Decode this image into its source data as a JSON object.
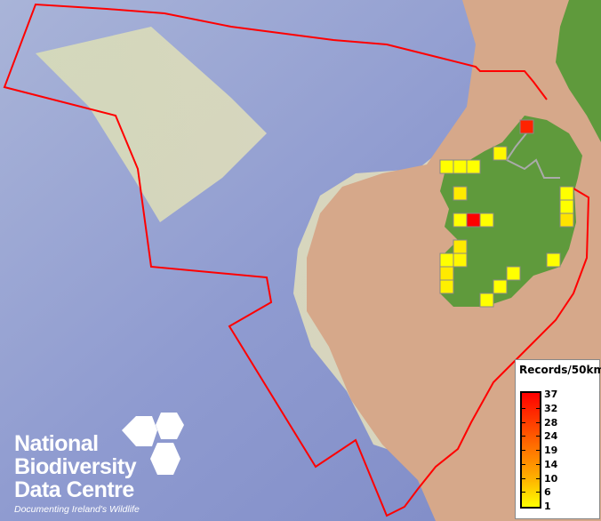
{
  "legend": {
    "title": "Records/50km",
    "labels": [
      "37",
      "32",
      "28",
      "24",
      "19",
      "14",
      "10",
      "6",
      "1"
    ],
    "colors": {
      "high": "#ff0000",
      "low": "#ffff00"
    }
  },
  "logo": {
    "lines": [
      "National",
      "Biodiversity",
      "Data Centre"
    ],
    "tagline": "Documenting Ireland's Wildlife"
  },
  "records": [
    {
      "col": 6,
      "row": 0,
      "value": 32
    },
    {
      "col": 4,
      "row": 2,
      "value": 2
    },
    {
      "col": 0,
      "row": 3,
      "value": 1
    },
    {
      "col": 1,
      "row": 3,
      "value": 1
    },
    {
      "col": 2,
      "row": 3,
      "value": 1
    },
    {
      "col": 1,
      "row": 5,
      "value": 4
    },
    {
      "col": 9,
      "row": 5,
      "value": 1
    },
    {
      "col": 9,
      "row": 6,
      "value": 1
    },
    {
      "col": 9,
      "row": 7,
      "value": 5
    },
    {
      "col": 1,
      "row": 7,
      "value": 1
    },
    {
      "col": 2,
      "row": 7,
      "value": 37
    },
    {
      "col": 3,
      "row": 7,
      "value": 1
    },
    {
      "col": 1,
      "row": 9,
      "value": 4
    },
    {
      "col": 0,
      "row": 10,
      "value": 1
    },
    {
      "col": 1,
      "row": 10,
      "value": 2
    },
    {
      "col": 8,
      "row": 10,
      "value": 1
    },
    {
      "col": 0,
      "row": 11,
      "value": 4
    },
    {
      "col": 5,
      "row": 11,
      "value": 1
    },
    {
      "col": 0,
      "row": 12,
      "value": 3
    },
    {
      "col": 4,
      "row": 12,
      "value": 1
    },
    {
      "col": 3,
      "row": 13,
      "value": 1
    }
  ],
  "colors": {
    "boundary": "#ff0000",
    "land": "#d6a88a",
    "ireland": "#5f9a3c"
  }
}
